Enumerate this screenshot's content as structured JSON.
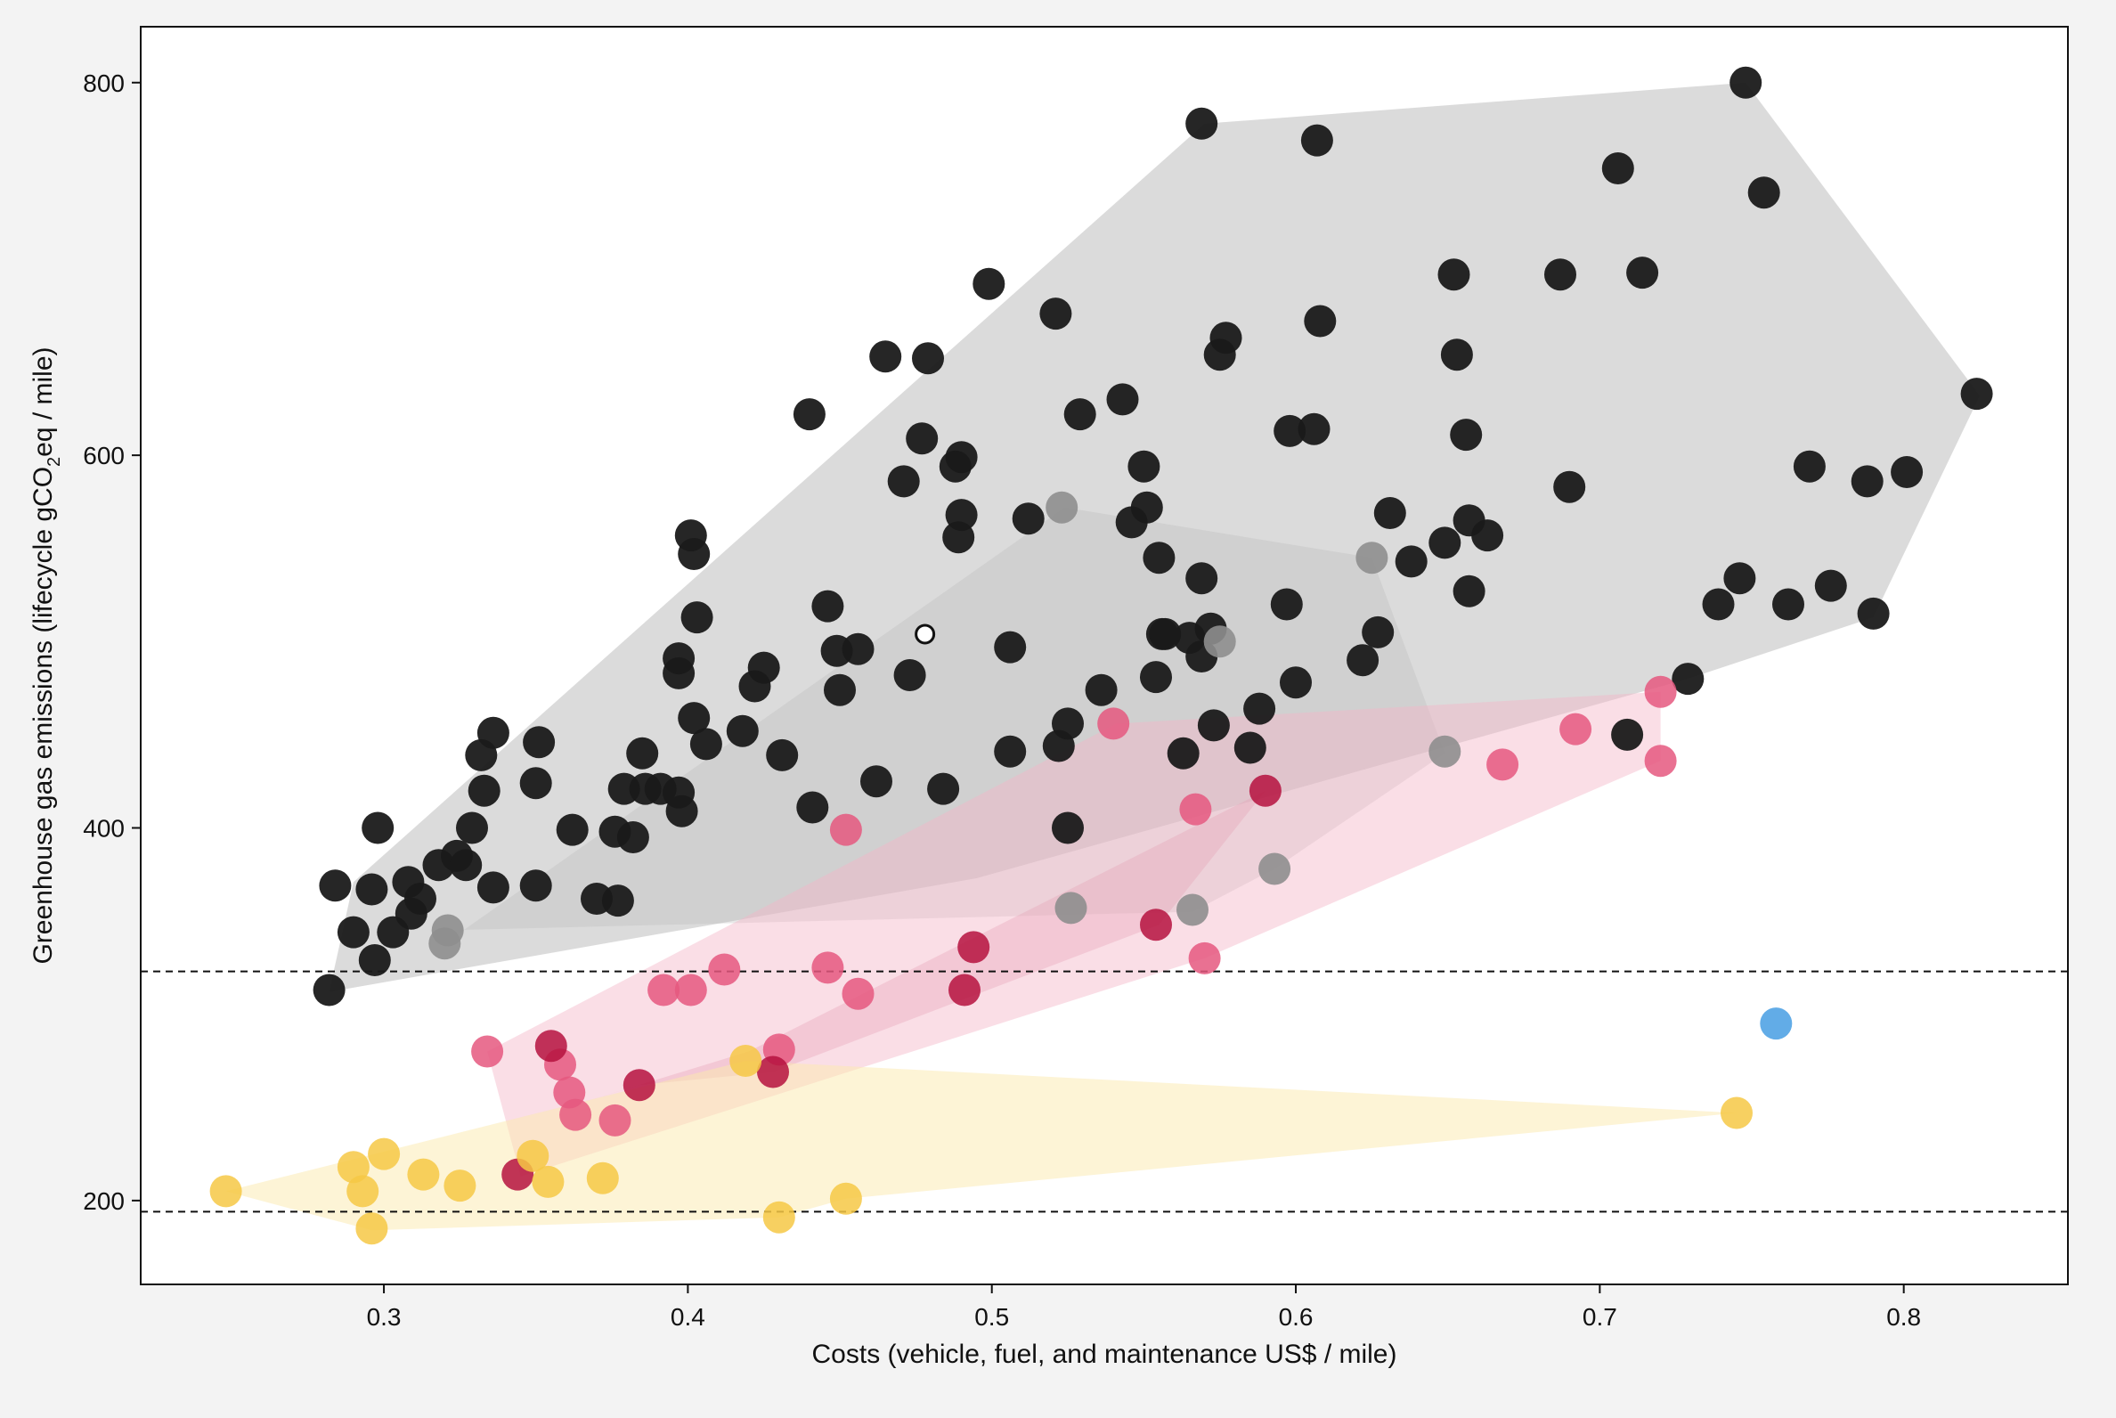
{
  "chart_data": {
    "type": "scatter",
    "xlabel": "Costs (vehicle, fuel, and maintenance US$ / mile)",
    "ylabel": {
      "pre": "Greenhouse gas emissions (lifecycle gCO",
      "sub": "2",
      "post": "eq / mile)"
    },
    "xlim": [
      0.22,
      0.854
    ],
    "ylim": [
      155,
      830
    ],
    "xticks": [
      0.3,
      0.4,
      0.5,
      0.6,
      0.7,
      0.8
    ],
    "xtick_labels": [
      "0.3",
      "0.4",
      "0.5",
      "0.6",
      "0.7",
      "0.8"
    ],
    "yticks": [
      200,
      400,
      600,
      800
    ],
    "ytick_labels": [
      "200",
      "400",
      "600",
      "800"
    ],
    "grid": false,
    "reference_lines": [
      323,
      194
    ],
    "regions": [
      {
        "color": "#bdbdbd",
        "opacity": 0.55,
        "points": [
          [
            0.29,
            371
          ],
          [
            0.57,
            778
          ],
          [
            0.748,
            800
          ],
          [
            0.825,
            632
          ],
          [
            0.79,
            513
          ],
          [
            0.729,
            480
          ],
          [
            0.495,
            373
          ],
          [
            0.282,
            312
          ]
        ]
      },
      {
        "color": "#bdbdbd",
        "opacity": 0.35,
        "points": [
          [
            0.32,
            338
          ],
          [
            0.524,
            572
          ],
          [
            0.625,
            545
          ],
          [
            0.649,
            440
          ],
          [
            0.593,
            378
          ],
          [
            0.566,
            355
          ],
          [
            0.32,
            345
          ]
        ]
      },
      {
        "color": "#f4b5c7",
        "opacity": 0.45,
        "points": [
          [
            0.334,
            280
          ],
          [
            0.541,
            456
          ],
          [
            0.72,
            473
          ],
          [
            0.72,
            436
          ],
          [
            0.57,
            330
          ],
          [
            0.345,
            213
          ]
        ]
      },
      {
        "color": "#e6a0b4",
        "opacity": 0.35,
        "points": [
          [
            0.36,
            250
          ],
          [
            0.42,
            280
          ],
          [
            0.59,
            420
          ],
          [
            0.555,
            348
          ],
          [
            0.428,
            269
          ],
          [
            0.384,
            262
          ]
        ]
      },
      {
        "color": "#fbe9ad",
        "opacity": 0.5,
        "points": [
          [
            0.248,
            205
          ],
          [
            0.419,
            275
          ],
          [
            0.745,
            247
          ],
          [
            0.452,
            201
          ],
          [
            0.43,
            191
          ],
          [
            0.296,
            184
          ]
        ]
      }
    ],
    "series": [
      {
        "color": "#1a1a1a",
        "opacity": 0.95,
        "points": [
          [
            0.282,
            313
          ],
          [
            0.284,
            369
          ],
          [
            0.29,
            344
          ],
          [
            0.296,
            367
          ],
          [
            0.297,
            329
          ],
          [
            0.298,
            400
          ],
          [
            0.303,
            344
          ],
          [
            0.308,
            371
          ],
          [
            0.309,
            354
          ],
          [
            0.312,
            362
          ],
          [
            0.318,
            380
          ],
          [
            0.324,
            385
          ],
          [
            0.327,
            380
          ],
          [
            0.329,
            400
          ],
          [
            0.332,
            439
          ],
          [
            0.333,
            420
          ],
          [
            0.336,
            368
          ],
          [
            0.336,
            451
          ],
          [
            0.35,
            424
          ],
          [
            0.35,
            369
          ],
          [
            0.351,
            446
          ],
          [
            0.362,
            399
          ],
          [
            0.37,
            362
          ],
          [
            0.376,
            398
          ],
          [
            0.377,
            361
          ],
          [
            0.379,
            421
          ],
          [
            0.382,
            395
          ],
          [
            0.385,
            440
          ],
          [
            0.386,
            421
          ],
          [
            0.391,
            421
          ],
          [
            0.397,
            419
          ],
          [
            0.397,
            483
          ],
          [
            0.397,
            491
          ],
          [
            0.398,
            409
          ],
          [
            0.401,
            557
          ],
          [
            0.402,
            547
          ],
          [
            0.402,
            459
          ],
          [
            0.403,
            513
          ],
          [
            0.406,
            445
          ],
          [
            0.418,
            452
          ],
          [
            0.422,
            476
          ],
          [
            0.425,
            486
          ],
          [
            0.431,
            439
          ],
          [
            0.44,
            622
          ],
          [
            0.441,
            411
          ],
          [
            0.446,
            519
          ],
          [
            0.449,
            495
          ],
          [
            0.45,
            474
          ],
          [
            0.456,
            496
          ],
          [
            0.462,
            425
          ],
          [
            0.465,
            653
          ],
          [
            0.471,
            586
          ],
          [
            0.473,
            482
          ],
          [
            0.477,
            609
          ],
          [
            0.479,
            652
          ],
          [
            0.484,
            421
          ],
          [
            0.488,
            594
          ],
          [
            0.489,
            556
          ],
          [
            0.49,
            599
          ],
          [
            0.49,
            568
          ],
          [
            0.499,
            692
          ],
          [
            0.506,
            497
          ],
          [
            0.506,
            441
          ],
          [
            0.512,
            566
          ],
          [
            0.521,
            676
          ],
          [
            0.522,
            444
          ],
          [
            0.525,
            400
          ],
          [
            0.525,
            456
          ],
          [
            0.529,
            622
          ],
          [
            0.536,
            474
          ],
          [
            0.543,
            630
          ],
          [
            0.546,
            564
          ],
          [
            0.55,
            594
          ],
          [
            0.551,
            572
          ],
          [
            0.554,
            481
          ],
          [
            0.555,
            545
          ],
          [
            0.556,
            504
          ],
          [
            0.557,
            504
          ],
          [
            0.563,
            440
          ],
          [
            0.565,
            502
          ],
          [
            0.569,
            492
          ],
          [
            0.569,
            534
          ],
          [
            0.569,
            778
          ],
          [
            0.572,
            507
          ],
          [
            0.573,
            455
          ],
          [
            0.575,
            654
          ],
          [
            0.577,
            663
          ],
          [
            0.585,
            443
          ],
          [
            0.588,
            464
          ],
          [
            0.597,
            520
          ],
          [
            0.598,
            613
          ],
          [
            0.6,
            478
          ],
          [
            0.606,
            614
          ],
          [
            0.607,
            769
          ],
          [
            0.608,
            672
          ],
          [
            0.622,
            490
          ],
          [
            0.627,
            505
          ],
          [
            0.631,
            569
          ],
          [
            0.638,
            543
          ],
          [
            0.649,
            553
          ],
          [
            0.652,
            697
          ],
          [
            0.653,
            654
          ],
          [
            0.656,
            611
          ],
          [
            0.657,
            565
          ],
          [
            0.657,
            527
          ],
          [
            0.663,
            557
          ],
          [
            0.687,
            697
          ],
          [
            0.69,
            583
          ],
          [
            0.706,
            754
          ],
          [
            0.709,
            450
          ],
          [
            0.714,
            698
          ],
          [
            0.729,
            480
          ],
          [
            0.739,
            520
          ],
          [
            0.746,
            534
          ],
          [
            0.748,
            800
          ],
          [
            0.754,
            741
          ],
          [
            0.762,
            520
          ],
          [
            0.769,
            594
          ],
          [
            0.776,
            530
          ],
          [
            0.788,
            586
          ],
          [
            0.79,
            515
          ],
          [
            0.801,
            591
          ],
          [
            0.824,
            633
          ]
        ]
      },
      {
        "color": "#8e8e8e",
        "opacity": 0.9,
        "points": [
          [
            0.32,
            338
          ],
          [
            0.321,
            345
          ],
          [
            0.523,
            572
          ],
          [
            0.526,
            357
          ],
          [
            0.566,
            356
          ],
          [
            0.575,
            500
          ],
          [
            0.593,
            378
          ],
          [
            0.625,
            545
          ],
          [
            0.649,
            441
          ]
        ]
      },
      {
        "color": "#e5587f",
        "opacity": 0.85,
        "points": [
          [
            0.334,
            280
          ],
          [
            0.358,
            273
          ],
          [
            0.361,
            258
          ],
          [
            0.363,
            246
          ],
          [
            0.376,
            243
          ],
          [
            0.392,
            313
          ],
          [
            0.401,
            313
          ],
          [
            0.412,
            324
          ],
          [
            0.43,
            281
          ],
          [
            0.446,
            325
          ],
          [
            0.452,
            399
          ],
          [
            0.456,
            311
          ],
          [
            0.54,
            456
          ],
          [
            0.567,
            410
          ],
          [
            0.57,
            330
          ],
          [
            0.668,
            434
          ],
          [
            0.692,
            453
          ],
          [
            0.72,
            473
          ],
          [
            0.72,
            436
          ]
        ]
      },
      {
        "color": "#b5123e",
        "opacity": 0.85,
        "points": [
          [
            0.344,
            214
          ],
          [
            0.355,
            283
          ],
          [
            0.384,
            262
          ],
          [
            0.428,
            269
          ],
          [
            0.491,
            313
          ],
          [
            0.494,
            336
          ],
          [
            0.554,
            348
          ],
          [
            0.59,
            420
          ]
        ]
      },
      {
        "color": "#f6c845",
        "opacity": 0.85,
        "points": [
          [
            0.248,
            205
          ],
          [
            0.29,
            218
          ],
          [
            0.293,
            205
          ],
          [
            0.296,
            185
          ],
          [
            0.3,
            225
          ],
          [
            0.313,
            214
          ],
          [
            0.325,
            208
          ],
          [
            0.349,
            224
          ],
          [
            0.354,
            210
          ],
          [
            0.372,
            212
          ],
          [
            0.419,
            275
          ],
          [
            0.43,
            191
          ],
          [
            0.452,
            201
          ],
          [
            0.745,
            247
          ]
        ]
      },
      {
        "color": "#5aa8e6",
        "opacity": 0.95,
        "points": [
          [
            0.758,
            295
          ]
        ]
      }
    ],
    "highlight": {
      "x": 0.478,
      "y": 504
    }
  }
}
